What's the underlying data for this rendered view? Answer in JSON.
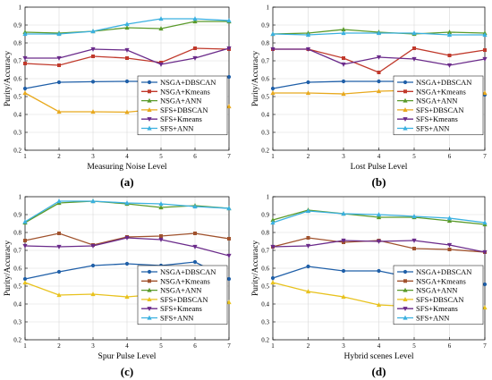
{
  "figure": {
    "chart_data": [
      {
        "type": "line",
        "panel_label": "(a)",
        "xlabel": "Measuring Noise Level",
        "ylabel": "Purity/Accuracy",
        "x": [
          1,
          2,
          3,
          4,
          5,
          6,
          7
        ],
        "xlim": [
          1,
          7
        ],
        "ylim": [
          0.2,
          1
        ],
        "yticks": [
          "0.2",
          "0.3",
          "0.4",
          "0.5",
          "0.6",
          "0.7",
          "0.8",
          "0.9",
          "1"
        ],
        "xticks": [
          "1",
          "2",
          "3",
          "4",
          "5",
          "6",
          "7"
        ],
        "grid": true,
        "legend": "center-right",
        "series": [
          {
            "name": "NSGA+DBSCAN",
            "color": "#1f5fa8",
            "marker": "circle",
            "values": [
              0.545,
              0.58,
              0.583,
              0.585,
              0.585,
              0.6,
              0.61
            ]
          },
          {
            "name": "NSGA+Kmeans",
            "color": "#c0392b",
            "marker": "square",
            "values": [
              0.685,
              0.675,
              0.725,
              0.715,
              0.69,
              0.77,
              0.765
            ]
          },
          {
            "name": "NSGA+ANN",
            "color": "#5a9a2a",
            "marker": "triangle",
            "values": [
              0.86,
              0.855,
              0.865,
              0.885,
              0.88,
              0.92,
              0.92
            ]
          },
          {
            "name": "SFS+DBSCAN",
            "color": "#e8a91e",
            "marker": "triangle",
            "values": [
              0.52,
              0.415,
              0.415,
              0.413,
              0.43,
              0.43,
              0.445
            ]
          },
          {
            "name": "SFS+Kmeans",
            "color": "#6a2a8a",
            "marker": "triangle-down",
            "values": [
              0.715,
              0.715,
              0.765,
              0.76,
              0.68,
              0.715,
              0.77
            ]
          },
          {
            "name": "SFS+ANN",
            "color": "#3ab0e0",
            "marker": "triangle",
            "values": [
              0.85,
              0.85,
              0.865,
              0.905,
              0.935,
              0.935,
              0.925
            ]
          }
        ]
      },
      {
        "type": "line",
        "panel_label": "(b)",
        "xlabel": "Lost Pulse Level",
        "ylabel": "Purity/Accuracy",
        "x": [
          1,
          2,
          3,
          4,
          5,
          6,
          7
        ],
        "xlim": [
          1,
          7
        ],
        "ylim": [
          0.2,
          1
        ],
        "yticks": [
          "0.2",
          "0.3",
          "0.4",
          "0.5",
          "0.6",
          "0.7",
          "0.8",
          "0.9",
          "1"
        ],
        "xticks": [
          "1",
          "2",
          "3",
          "4",
          "5",
          "6",
          "7"
        ],
        "grid": true,
        "legend": "center-right",
        "series": [
          {
            "name": "NSGA+DBSCAN",
            "color": "#1f5fa8",
            "marker": "circle",
            "values": [
              0.545,
              0.58,
              0.585,
              0.585,
              0.585,
              0.56,
              0.51
            ]
          },
          {
            "name": "NSGA+Kmeans",
            "color": "#c0392b",
            "marker": "square",
            "values": [
              0.765,
              0.765,
              0.715,
              0.635,
              0.77,
              0.73,
              0.76
            ]
          },
          {
            "name": "NSGA+ANN",
            "color": "#5a9a2a",
            "marker": "triangle",
            "values": [
              0.85,
              0.855,
              0.875,
              0.86,
              0.85,
              0.86,
              0.855
            ]
          },
          {
            "name": "SFS+DBSCAN",
            "color": "#e8a91e",
            "marker": "triangle",
            "values": [
              0.52,
              0.52,
              0.515,
              0.53,
              0.535,
              0.535,
              0.52
            ]
          },
          {
            "name": "SFS+Kmeans",
            "color": "#6a2a8a",
            "marker": "triangle-down",
            "values": [
              0.765,
              0.765,
              0.68,
              0.72,
              0.71,
              0.675,
              0.71
            ]
          },
          {
            "name": "SFS+ANN",
            "color": "#3ab0e0",
            "marker": "triangle",
            "values": [
              0.85,
              0.845,
              0.855,
              0.855,
              0.855,
              0.845,
              0.845
            ]
          }
        ]
      },
      {
        "type": "line",
        "panel_label": "(c)",
        "xlabel": "Spur Pulse Level",
        "ylabel": "Purity/Accuracy",
        "x": [
          1,
          2,
          3,
          4,
          5,
          6,
          7
        ],
        "xlim": [
          1,
          7
        ],
        "ylim": [
          0.2,
          1
        ],
        "yticks": [
          "0.2",
          "0.3",
          "0.4",
          "0.5",
          "0.6",
          "0.7",
          "0.8",
          "0.9",
          "1"
        ],
        "xticks": [
          "1",
          "2",
          "3",
          "4",
          "5",
          "6",
          "7"
        ],
        "grid": true,
        "legend": "center-right",
        "series": [
          {
            "name": "NSGA+DBSCAN",
            "color": "#1f5fa8",
            "marker": "circle",
            "values": [
              0.54,
              0.58,
              0.615,
              0.625,
              0.615,
              0.635,
              0.54
            ]
          },
          {
            "name": "NSGA+Kmeans",
            "color": "#a0522d",
            "marker": "square",
            "values": [
              0.755,
              0.795,
              0.73,
              0.775,
              0.78,
              0.795,
              0.765
            ]
          },
          {
            "name": "NSGA+ANN",
            "color": "#5a9a2a",
            "marker": "triangle",
            "values": [
              0.855,
              0.965,
              0.975,
              0.96,
              0.94,
              0.95,
              0.935
            ]
          },
          {
            "name": "SFS+DBSCAN",
            "color": "#e8c21e",
            "marker": "triangle",
            "values": [
              0.52,
              0.45,
              0.455,
              0.44,
              0.455,
              0.43,
              0.41
            ]
          },
          {
            "name": "SFS+Kmeans",
            "color": "#6a2a8a",
            "marker": "triangle-down",
            "values": [
              0.725,
              0.72,
              0.725,
              0.77,
              0.76,
              0.72,
              0.67
            ]
          },
          {
            "name": "SFS+ANN",
            "color": "#3ab0e0",
            "marker": "triangle",
            "values": [
              0.86,
              0.975,
              0.975,
              0.965,
              0.96,
              0.945,
              0.935
            ]
          }
        ]
      },
      {
        "type": "line",
        "panel_label": "(d)",
        "xlabel": "Hybrid scenes Level",
        "ylabel": "Purity/Accuracy",
        "x": [
          1,
          2,
          3,
          4,
          5,
          6,
          7
        ],
        "xlim": [
          1,
          7
        ],
        "ylim": [
          0.2,
          1
        ],
        "yticks": [
          "0.2",
          "0.3",
          "0.4",
          "0.5",
          "0.6",
          "0.7",
          "0.8",
          "0.9",
          "1"
        ],
        "xticks": [
          "1",
          "2",
          "3",
          "4",
          "5",
          "6",
          "7"
        ],
        "grid": true,
        "legend": "center-right",
        "series": [
          {
            "name": "NSGA+DBSCAN",
            "color": "#1f5fa8",
            "marker": "circle",
            "values": [
              0.545,
              0.61,
              0.585,
              0.585,
              0.545,
              0.525,
              0.51
            ]
          },
          {
            "name": "NSGA+Kmeans",
            "color": "#a0522d",
            "marker": "square",
            "values": [
              0.72,
              0.77,
              0.745,
              0.755,
              0.71,
              0.705,
              0.69
            ]
          },
          {
            "name": "NSGA+ANN",
            "color": "#5a9a2a",
            "marker": "triangle",
            "values": [
              0.87,
              0.925,
              0.905,
              0.885,
              0.885,
              0.865,
              0.845
            ]
          },
          {
            "name": "SFS+DBSCAN",
            "color": "#e8c21e",
            "marker": "triangle",
            "values": [
              0.52,
              0.47,
              0.44,
              0.395,
              0.385,
              0.38,
              0.38
            ]
          },
          {
            "name": "SFS+Kmeans",
            "color": "#6a2a8a",
            "marker": "triangle-down",
            "values": [
              0.72,
              0.725,
              0.755,
              0.75,
              0.755,
              0.73,
              0.69
            ]
          },
          {
            "name": "SFS+ANN",
            "color": "#3ab0e0",
            "marker": "triangle",
            "values": [
              0.855,
              0.92,
              0.905,
              0.9,
              0.89,
              0.88,
              0.855
            ]
          }
        ]
      }
    ]
  }
}
